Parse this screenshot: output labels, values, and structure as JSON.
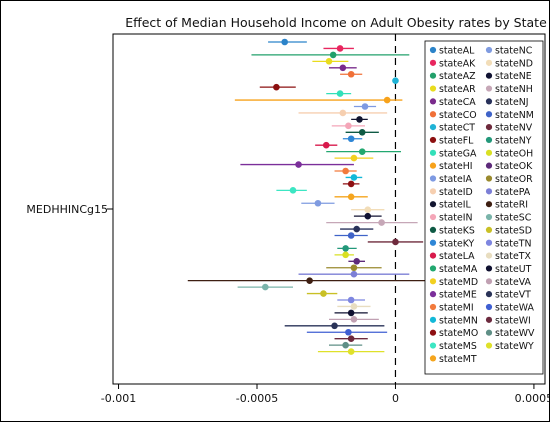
{
  "chart_data": {
    "type": "scatter",
    "title": "Effect of Median Household Income on Adult Obesity rates by State",
    "ylabel": "MEDHHINCg15",
    "xlabel": "",
    "xlim": [
      -0.00102,
      0.00054
    ],
    "x_ticks": [
      -0.001,
      -0.0005,
      0,
      0.0005
    ],
    "x_tick_labels": [
      "-0.001",
      "-0.0005",
      "0",
      "0.0005"
    ],
    "reference_line": 0,
    "grid": false,
    "legend_position": "right",
    "series": [
      {
        "name": "stateAL",
        "color": "#2b83c9",
        "estimate": -0.0004,
        "ci": [
          -0.00046,
          -0.00032
        ]
      },
      {
        "name": "stateAK",
        "color": "#e8265f",
        "estimate": -0.0002,
        "ci": [
          -0.00026,
          -0.00015
        ]
      },
      {
        "name": "stateAZ",
        "color": "#22a06b",
        "estimate": -0.000225,
        "ci": [
          -0.00052,
          5e-05
        ]
      },
      {
        "name": "stateAR",
        "color": "#e9dc1e",
        "estimate": -0.00024,
        "ci": [
          -0.0003,
          -0.00017
        ]
      },
      {
        "name": "stateCA",
        "color": "#7a2b8c",
        "estimate": -0.00019,
        "ci": [
          -0.00024,
          -0.00014
        ]
      },
      {
        "name": "stateCO",
        "color": "#f07038",
        "estimate": -0.00016,
        "ci": [
          -0.0002,
          -0.00012
        ]
      },
      {
        "name": "stateCT",
        "color": "#1fb3d6",
        "estimate": 0,
        "ci": [
          0,
          0
        ]
      },
      {
        "name": "stateFL",
        "color": "#8c1010",
        "estimate": -0.00043,
        "ci": [
          -0.00049,
          -0.00036
        ]
      },
      {
        "name": "stateGA",
        "color": "#32e0b9",
        "estimate": -0.0002,
        "ci": [
          -0.00025,
          -0.00016
        ]
      },
      {
        "name": "stateHI",
        "color": "#f7a21b",
        "estimate": -3e-05,
        "ci": [
          -0.00058,
          2.5e-05
        ]
      },
      {
        "name": "stateIA",
        "color": "#7e9ae2",
        "estimate": -0.00011,
        "ci": [
          -0.00015,
          -7e-05
        ]
      },
      {
        "name": "stateID",
        "color": "#f6cfb0",
        "estimate": -0.00019,
        "ci": [
          -0.00035,
          -3e-05
        ]
      },
      {
        "name": "stateIL",
        "color": "#121530",
        "estimate": -0.00013,
        "ci": [
          -0.00016,
          -0.0001
        ]
      },
      {
        "name": "stateIN",
        "color": "#f4a6b8",
        "estimate": -0.00017,
        "ci": [
          -0.00023,
          -0.00011
        ]
      },
      {
        "name": "stateKS",
        "color": "#0e5a44",
        "estimate": -0.00012,
        "ci": [
          -0.00018,
          -6e-05
        ]
      },
      {
        "name": "stateKY",
        "color": "#2e86d6",
        "estimate": -0.00016,
        "ci": [
          -0.00019,
          -0.00012
        ]
      },
      {
        "name": "stateLA",
        "color": "#d81a4c",
        "estimate": -0.00025,
        "ci": [
          -0.00029,
          -0.00021
        ]
      },
      {
        "name": "stateMA",
        "color": "#22a870",
        "estimate": -0.00012,
        "ci": [
          -0.00025,
          2e-05
        ]
      },
      {
        "name": "stateMD",
        "color": "#f2d020",
        "estimate": -0.00015,
        "ci": [
          -0.00022,
          -8e-05
        ]
      },
      {
        "name": "stateME",
        "color": "#7b2f9a",
        "estimate": -0.00035,
        "ci": [
          -0.00056,
          -0.00015
        ]
      },
      {
        "name": "stateMI",
        "color": "#f27a3c",
        "estimate": -0.00018,
        "ci": [
          -0.00022,
          -0.00014
        ]
      },
      {
        "name": "stateMN",
        "color": "#12b8d8",
        "estimate": -0.00015,
        "ci": [
          -0.00018,
          -0.00012
        ]
      },
      {
        "name": "stateMO",
        "color": "#8e0f12",
        "estimate": -0.00016,
        "ci": [
          -0.00019,
          -0.00013
        ]
      },
      {
        "name": "stateMS",
        "color": "#3ce6c3",
        "estimate": -0.00037,
        "ci": [
          -0.00043,
          -0.00032
        ]
      },
      {
        "name": "stateMT",
        "color": "#f5a51e",
        "estimate": -0.00016,
        "ci": [
          -0.00022,
          -0.0001
        ]
      },
      {
        "name": "stateNC",
        "color": "#7f9be0",
        "estimate": -0.00028,
        "ci": [
          -0.00034,
          -0.00022
        ]
      },
      {
        "name": "stateND",
        "color": "#f2ddb8",
        "estimate": -0.0001,
        "ci": [
          -0.00016,
          -4e-05
        ]
      },
      {
        "name": "stateNE",
        "color": "#101232",
        "estimate": -0.0001,
        "ci": [
          -0.00015,
          -5e-05
        ]
      },
      {
        "name": "stateNH",
        "color": "#c6a7b7",
        "estimate": -5e-05,
        "ci": [
          -0.00025,
          8e-05
        ]
      },
      {
        "name": "stateNJ",
        "color": "#28315a",
        "estimate": -0.00014,
        "ci": [
          -0.0002,
          -8e-05
        ]
      },
      {
        "name": "stateNM",
        "color": "#3f63c8",
        "estimate": -0.00016,
        "ci": [
          -0.00022,
          -0.0001
        ]
      },
      {
        "name": "stateNV",
        "color": "#6e2a3c",
        "estimate": 0,
        "ci": [
          -0.0001,
          0.0001
        ]
      },
      {
        "name": "stateNY",
        "color": "#23987a",
        "estimate": -0.00018,
        "ci": [
          -0.00021,
          -0.00014
        ]
      },
      {
        "name": "stateOH",
        "color": "#d9e023",
        "estimate": -0.00018,
        "ci": [
          -0.00022,
          -0.00015
        ]
      },
      {
        "name": "stateOK",
        "color": "#5d2a7a",
        "estimate": -0.00014,
        "ci": [
          -0.00017,
          -0.00011
        ]
      },
      {
        "name": "stateOR",
        "color": "#9a8a2e",
        "estimate": -0.00015,
        "ci": [
          -0.00025,
          -5e-05
        ]
      },
      {
        "name": "statePA",
        "color": "#7c7fd6",
        "estimate": -0.00015,
        "ci": [
          -0.00035,
          5e-05
        ]
      },
      {
        "name": "stateRI",
        "color": "#3e1f12",
        "estimate": -0.00031,
        "ci": [
          -0.00075,
          0.00013
        ]
      },
      {
        "name": "stateSC",
        "color": "#7ab4aa",
        "estimate": -0.00047,
        "ci": [
          -0.00057,
          -0.00037
        ]
      },
      {
        "name": "stateSD",
        "color": "#c9c025",
        "estimate": -0.00026,
        "ci": [
          -0.00032,
          -0.00021
        ]
      },
      {
        "name": "stateTN",
        "color": "#7e86e0",
        "estimate": -0.00016,
        "ci": [
          -0.00021,
          -0.00011
        ]
      },
      {
        "name": "stateTX",
        "color": "#e8ddc0",
        "estimate": -0.00015,
        "ci": [
          -0.00021,
          -9e-05
        ]
      },
      {
        "name": "stateUT",
        "color": "#0f1030",
        "estimate": -0.00016,
        "ci": [
          -0.00022,
          -0.0001
        ]
      },
      {
        "name": "stateVA",
        "color": "#c0a0b2",
        "estimate": -0.00015,
        "ci": [
          -0.00024,
          -6e-05
        ]
      },
      {
        "name": "stateVT",
        "color": "#2a3358",
        "estimate": -0.00022,
        "ci": [
          -0.0004,
          -4e-05
        ]
      },
      {
        "name": "stateWA",
        "color": "#3f5fd2",
        "estimate": -0.00017,
        "ci": [
          -0.00032,
          -3e-05
        ]
      },
      {
        "name": "stateWI",
        "color": "#6c2a3e",
        "estimate": -0.00016,
        "ci": [
          -0.00022,
          -0.0001
        ]
      },
      {
        "name": "stateWV",
        "color": "#5f8f86",
        "estimate": -0.00018,
        "ci": [
          -0.00024,
          -0.00012
        ]
      },
      {
        "name": "stateWY",
        "color": "#dfe12a",
        "estimate": -0.00016,
        "ci": [
          -0.00028,
          -4e-05
        ]
      }
    ]
  }
}
